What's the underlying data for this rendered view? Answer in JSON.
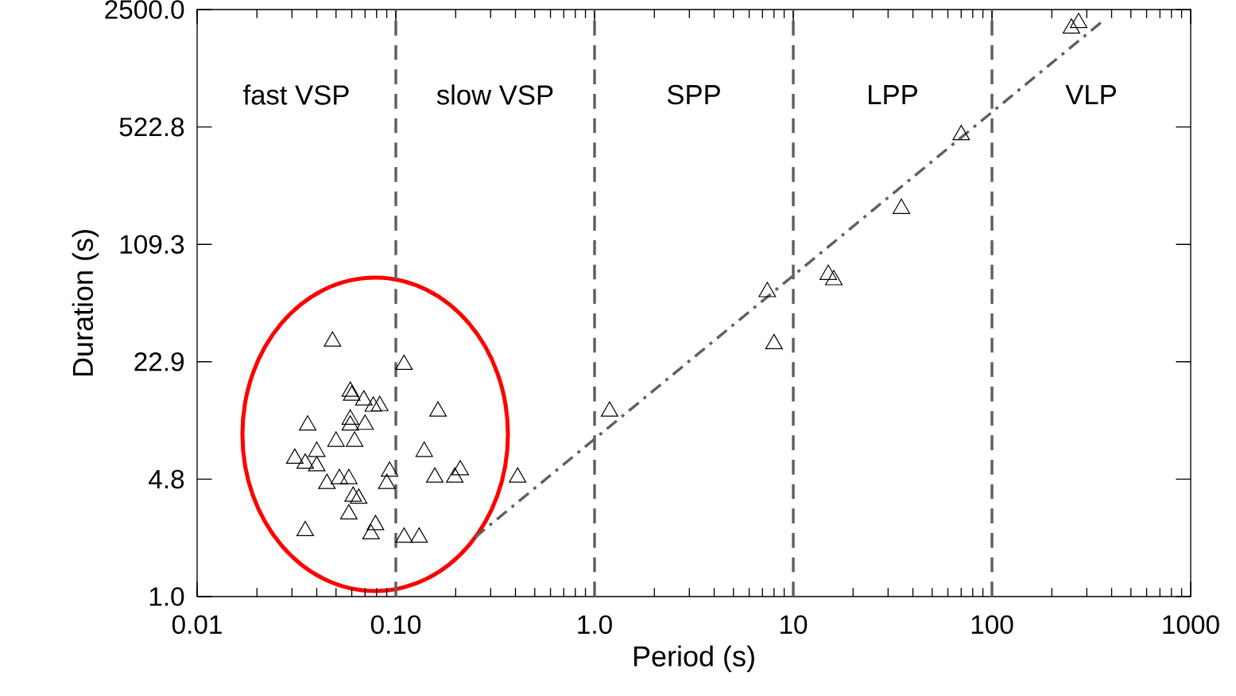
{
  "chart_data": {
    "type": "scatter",
    "xlabel": "Period (s)",
    "ylabel": "Duration (s)",
    "log": "xy",
    "grid": false,
    "xlim": [
      0.01,
      1000
    ],
    "ylim": [
      1,
      2500
    ],
    "xticks": [
      0.01,
      {
        "value": 0.1,
        "label": "0.10"
      },
      {
        "value": 1,
        "label": "1.0"
      },
      10,
      100,
      1000
    ],
    "yticks": [
      {
        "value": 1,
        "label": "1.0"
      },
      {
        "value": 4.78,
        "label": "4.8"
      },
      {
        "value": 22.87,
        "label": "22.9"
      },
      {
        "value": 109.3,
        "label": "109.3"
      },
      {
        "value": 522.8,
        "label": "522.8"
      },
      {
        "value": 2500,
        "label": "2500.0"
      }
    ],
    "ref_lines": [
      {
        "axis": "x",
        "value": 0.1,
        "color": "#606060",
        "line_style": "dashed"
      },
      {
        "axis": "x",
        "value": 1,
        "color": "#606060",
        "line_style": "dashed"
      },
      {
        "axis": "x",
        "value": 10,
        "color": "#606060",
        "line_style": "dashed"
      },
      {
        "axis": "x",
        "value": 100,
        "color": "#606060",
        "line_style": "dashed"
      }
    ],
    "annotations": [
      "fast VSP",
      "slow VSP",
      "SPP",
      "LPP",
      "VLP"
    ],
    "series": [
      {
        "marker": "triangle",
        "color": "#000000",
        "x": [
          0.048,
          0.11,
          0.059,
          0.06,
          0.069,
          0.077,
          0.083,
          0.163,
          0.036,
          0.059,
          0.059,
          0.07,
          0.05,
          0.062,
          0.139,
          0.04,
          0.031,
          0.035,
          0.04,
          0.045,
          0.052,
          0.058,
          0.093,
          0.157,
          0.211,
          0.198,
          0.09,
          0.061,
          0.065,
          0.058,
          0.079,
          0.075,
          0.035,
          0.11,
          0.131,
          0.41,
          1.19,
          7.4,
          8.0,
          15,
          16,
          35,
          70,
          251,
          273
        ],
        "values": [
          30,
          22,
          15.4,
          14.6,
          13.7,
          12.6,
          12.7,
          11.8,
          9.8,
          10.6,
          9.8,
          9.9,
          7.9,
          7.9,
          6.9,
          6.9,
          6.3,
          5.9,
          5.7,
          4.5,
          4.8,
          4.8,
          5.3,
          4.9,
          5.4,
          4.9,
          4.5,
          3.8,
          3.7,
          3.0,
          2.6,
          2.3,
          2.4,
          2.2,
          2.2,
          4.9,
          11.8,
          58,
          29,
          73,
          68,
          176,
          470,
          1945,
          2094
        ]
      },
      {
        "type": "line",
        "marker": "none",
        "line_style": "dashdot",
        "color": "#606060",
        "x": [
          0.25,
          353
        ],
        "values": [
          2.2,
          2100
        ]
      }
    ]
  }
}
